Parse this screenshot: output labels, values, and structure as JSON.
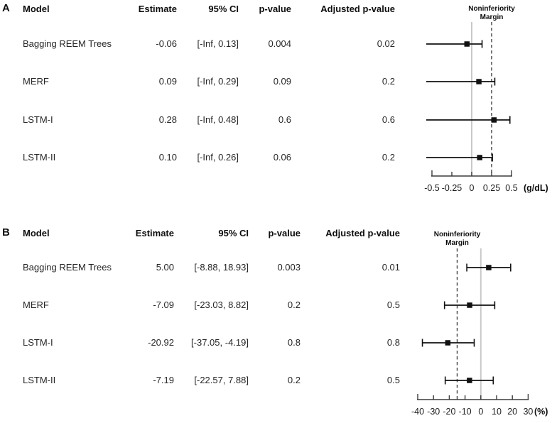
{
  "figure": {
    "background": "#ffffff",
    "text_color": "#1e1e1e",
    "reference_line_color": "#c9c9c9",
    "margin_line_color": "#3f3f3f",
    "data_color": "#111111"
  },
  "panels": [
    {
      "label": "A",
      "columns": {
        "model": "Model",
        "estimate": "Estimate",
        "ci": "95% CI",
        "pvalue": "p-value",
        "adj": "Adjusted p-value"
      },
      "rows": [
        {
          "model": "Bagging REEM Trees",
          "estimate": "-0.06",
          "ci": "[-Inf, 0.13]",
          "pvalue": "0.004",
          "adj": "0.02"
        },
        {
          "model": "MERF",
          "estimate": "0.09",
          "ci": "[-Inf, 0.29]",
          "pvalue": "0.09",
          "adj": "0.2"
        },
        {
          "model": "LSTM-I",
          "estimate": "0.28",
          "ci": "[-Inf, 0.48]",
          "pvalue": "0.6",
          "adj": "0.6"
        },
        {
          "model": "LSTM-II",
          "estimate": "0.10",
          "ci": "[-Inf, 0.26]",
          "pvalue": "0.06",
          "adj": "0.2"
        }
      ]
    },
    {
      "label": "B",
      "columns": {
        "model": "Model",
        "estimate": "Estimate",
        "ci": "95% CI",
        "pvalue": "p-value",
        "adj": "Adjusted p-value"
      },
      "rows": [
        {
          "model": "Bagging REEM Trees",
          "estimate": "5.00",
          "ci": "[-8.88, 18.93]",
          "pvalue": "0.003",
          "adj": "0.01"
        },
        {
          "model": "MERF",
          "estimate": "-7.09",
          "ci": "[-23.03, 8.82]",
          "pvalue": "0.2",
          "adj": "0.5"
        },
        {
          "model": "LSTM-I",
          "estimate": "-20.92",
          "ci": "[-37.05, -4.19]",
          "pvalue": "0.8",
          "adj": "0.8"
        },
        {
          "model": "LSTM-II",
          "estimate": "-7.19",
          "ci": "[-22.57, 7.88]",
          "pvalue": "0.2",
          "adj": "0.5"
        }
      ]
    }
  ],
  "chart_data": [
    {
      "type": "scatter",
      "variant": "forest-plot",
      "panel": "A",
      "models": [
        "Bagging REEM Trees",
        "MERF",
        "LSTM-I",
        "LSTM-II"
      ],
      "estimates": [
        -0.06,
        0.09,
        0.28,
        0.1
      ],
      "ci_lower": [
        "-Inf",
        "-Inf",
        "-Inf",
        "-Inf"
      ],
      "ci_upper": [
        0.13,
        0.29,
        0.48,
        0.26
      ],
      "xlim": [
        -0.5,
        0.5
      ],
      "ticks": [
        -0.5,
        -0.25,
        0,
        0.25,
        0.5
      ],
      "tick_labels": [
        "-0.5",
        "-0.25",
        "0",
        "0.25",
        "0.5"
      ],
      "unit": "(g/dL)",
      "reference_x": 0,
      "noninferiority_margin": 0.25,
      "margin_label_line1": "Noninferiority",
      "margin_label_line2": "Margin",
      "grid": false,
      "legend": false
    },
    {
      "type": "scatter",
      "variant": "forest-plot",
      "panel": "B",
      "models": [
        "Bagging REEM Trees",
        "MERF",
        "LSTM-I",
        "LSTM-II"
      ],
      "estimates": [
        5.0,
        -7.09,
        -20.92,
        -7.19
      ],
      "ci_lower": [
        -8.88,
        -23.03,
        -37.05,
        -22.57
      ],
      "ci_upper": [
        18.93,
        8.82,
        -4.19,
        7.88
      ],
      "xlim": [
        -40,
        30
      ],
      "ticks": [
        -40,
        -30,
        -20,
        -10,
        0,
        10,
        20,
        30
      ],
      "tick_labels": [
        "-40",
        "-30",
        "-20",
        "-10",
        "0",
        "10",
        "20",
        "30"
      ],
      "unit": "(%)",
      "reference_x": 0,
      "noninferiority_margin": -15,
      "margin_label_line1": "Noninferiority",
      "margin_label_line2": "Margin",
      "grid": false,
      "legend": false
    }
  ]
}
